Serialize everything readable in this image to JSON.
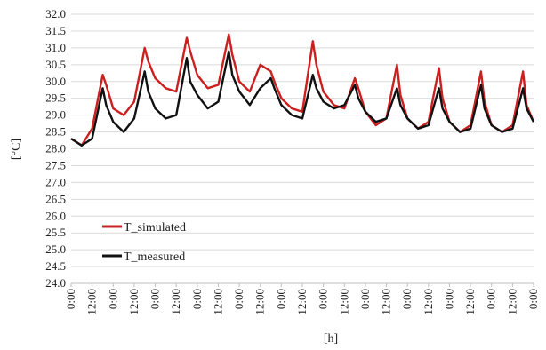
{
  "chart_data": {
    "type": "line",
    "xlabel": "[h]",
    "ylabel": "[°C]",
    "ylim": [
      24.0,
      32.0
    ],
    "ytick_step": 0.5,
    "x_tick_labels": [
      "0:00",
      "12:00",
      "0:00",
      "12:00",
      "0:00",
      "12:00",
      "0:00",
      "12:00",
      "0:00",
      "12:00",
      "0:00",
      "12:00",
      "0:00",
      "12:00",
      "0:00",
      "12:00",
      "0:00",
      "12:00",
      "0:00",
      "12:00",
      "0:00",
      "12:00",
      "0:00"
    ],
    "grid": "horizontal",
    "legend_position": "lower-left",
    "series": [
      {
        "name": "T_simulated",
        "color": "#cc1f1f",
        "x_hours": [
          0,
          3,
          6,
          9,
          10,
          12,
          15,
          18,
          21,
          22,
          24,
          27,
          30,
          33,
          34,
          36,
          39,
          42,
          45,
          46,
          48,
          51,
          54,
          57,
          58,
          60,
          63,
          66,
          69,
          70,
          72,
          75,
          78,
          81,
          82,
          84,
          87,
          90,
          93,
          94,
          96,
          99,
          102,
          105,
          106,
          108,
          111,
          114,
          117,
          118,
          120,
          123,
          126,
          129,
          130,
          132
        ],
        "values": [
          28.3,
          28.1,
          28.6,
          30.2,
          29.9,
          29.2,
          29.0,
          29.4,
          31.0,
          30.6,
          30.1,
          29.8,
          29.7,
          31.3,
          30.9,
          30.2,
          29.8,
          29.9,
          31.4,
          30.8,
          30.0,
          29.7,
          30.5,
          30.3,
          30.0,
          29.5,
          29.2,
          29.1,
          31.2,
          30.5,
          29.7,
          29.3,
          29.2,
          30.1,
          29.8,
          29.1,
          28.7,
          28.9,
          30.5,
          29.6,
          28.9,
          28.6,
          28.8,
          30.4,
          29.5,
          28.8,
          28.5,
          28.7,
          30.3,
          29.4,
          28.7,
          28.5,
          28.7,
          30.3,
          29.3,
          28.8
        ]
      },
      {
        "name": "T_measured",
        "color": "#111111",
        "x_hours": [
          0,
          3,
          6,
          9,
          10,
          12,
          15,
          18,
          21,
          22,
          24,
          27,
          30,
          33,
          34,
          36,
          39,
          42,
          45,
          46,
          48,
          51,
          54,
          57,
          58,
          60,
          63,
          66,
          69,
          70,
          72,
          75,
          78,
          81,
          82,
          84,
          87,
          90,
          93,
          94,
          96,
          99,
          102,
          105,
          106,
          108,
          111,
          114,
          117,
          118,
          120,
          123,
          126,
          129,
          130,
          132
        ],
        "values": [
          28.3,
          28.1,
          28.3,
          29.8,
          29.3,
          28.8,
          28.5,
          28.9,
          30.3,
          29.7,
          29.2,
          28.9,
          29.0,
          30.7,
          30.0,
          29.6,
          29.2,
          29.4,
          30.9,
          30.2,
          29.7,
          29.3,
          29.8,
          30.1,
          29.8,
          29.3,
          29.0,
          28.9,
          30.2,
          29.8,
          29.4,
          29.2,
          29.3,
          29.9,
          29.5,
          29.1,
          28.8,
          28.9,
          29.8,
          29.3,
          28.9,
          28.6,
          28.7,
          29.8,
          29.2,
          28.8,
          28.5,
          28.6,
          29.9,
          29.2,
          28.7,
          28.5,
          28.6,
          29.8,
          29.2,
          28.8
        ]
      }
    ]
  }
}
